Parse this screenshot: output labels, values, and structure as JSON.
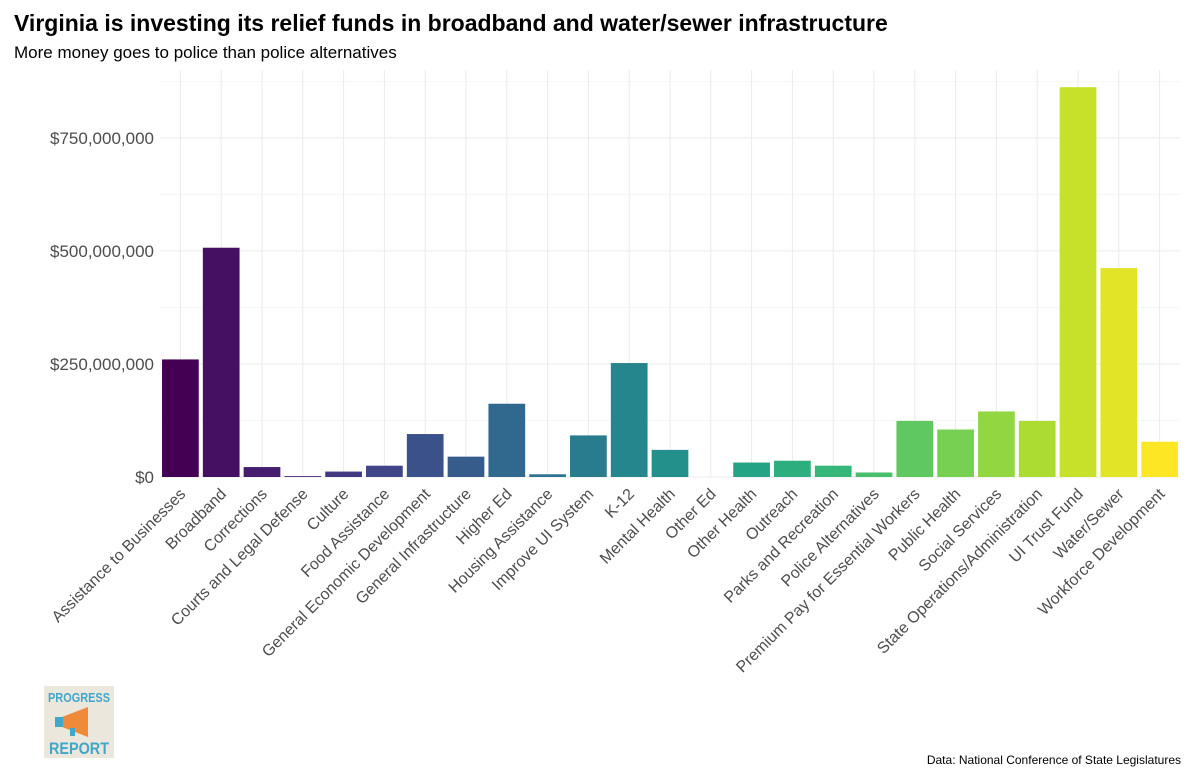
{
  "chart_data": {
    "type": "bar",
    "title": "Virginia is investing its relief funds in broadband and water/sewer infrastructure",
    "subtitle": "More money goes to police than police alternatives",
    "xlabel": "",
    "ylabel": "",
    "ylim": [
      0,
      900000000
    ],
    "yticks": [
      0,
      250000000,
      500000000,
      750000000
    ],
    "ytick_labels": [
      "$0",
      "$250,000,000",
      "$500,000,000",
      "$750,000,000"
    ],
    "grid": true,
    "legend": "none",
    "categories": [
      "Assistance to Businesses",
      "Broadband",
      "Corrections",
      "Courts and Legal Defense",
      "Culture",
      "Food Assistance",
      "General Economic Development",
      "General Infrastructure",
      "Higher Ed",
      "Housing Assistance",
      "Improve UI System",
      "K-12",
      "Mental Health",
      "Other Ed",
      "Other Health",
      "Outreach",
      "Parks and Recreation",
      "Police Alternatives",
      "Premium Pay for Essential Workers",
      "Public Health",
      "Social Services",
      "State Operations/Administration",
      "UI Trust Fund",
      "Water/Sewer",
      "Workforce Development"
    ],
    "values": [
      260000000,
      507000000,
      22000000,
      2000000,
      12000000,
      25000000,
      95000000,
      45000000,
      162000000,
      6000000,
      92000000,
      252000000,
      60000000,
      0,
      32000000,
      36000000,
      25000000,
      10000000,
      124000000,
      105000000,
      145000000,
      124000000,
      862000000,
      462000000,
      78000000
    ],
    "colors": [
      "#440154",
      "#481769",
      "#472a7a",
      "#433d84",
      "#3d4e8a",
      "#355e8d",
      "#2e6d8e",
      "#297b8e",
      "#23898e",
      "#1f978b",
      "#21a585",
      "#2eb37c",
      "#46c06f",
      "#65cb5e",
      "#89d548",
      "#b0dd2f",
      "#d8e219",
      "#fde725",
      "#fde725",
      "#fde725",
      "#fde725",
      "#fde725",
      "#fde725",
      "#fde725",
      "#fde725"
    ]
  },
  "caption": "Data: National Conference of State Legislatures",
  "logo": {
    "line1": "PROGRESS",
    "line2": "REPORT",
    "icon": "megaphone-icon"
  }
}
